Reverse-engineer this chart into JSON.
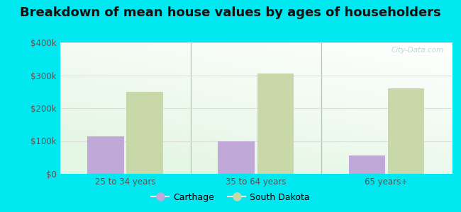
{
  "title": "Breakdown of mean house values by ages of householders",
  "categories": [
    "25 to 34 years",
    "35 to 64 years",
    "65 years+"
  ],
  "series": [
    {
      "name": "Carthage",
      "values": [
        115000,
        100000,
        55000
      ],
      "color": "#c0a8d8"
    },
    {
      "name": "South Dakota",
      "values": [
        250000,
        305000,
        260000
      ],
      "color": "#c8d8a8"
    }
  ],
  "ylim": [
    0,
    400000
  ],
  "yticks": [
    0,
    100000,
    200000,
    300000,
    400000
  ],
  "ytick_labels": [
    "$0",
    "$100k",
    "$200k",
    "$300k",
    "$400k"
  ],
  "background_outer": "#00e8f0",
  "bar_width": 0.28,
  "title_fontsize": 13,
  "legend_fontsize": 9,
  "tick_fontsize": 8.5,
  "watermark": "City-Data.com",
  "grid_color": "#dddddd",
  "divider_color": "#aaccaa",
  "text_color": "#555555"
}
